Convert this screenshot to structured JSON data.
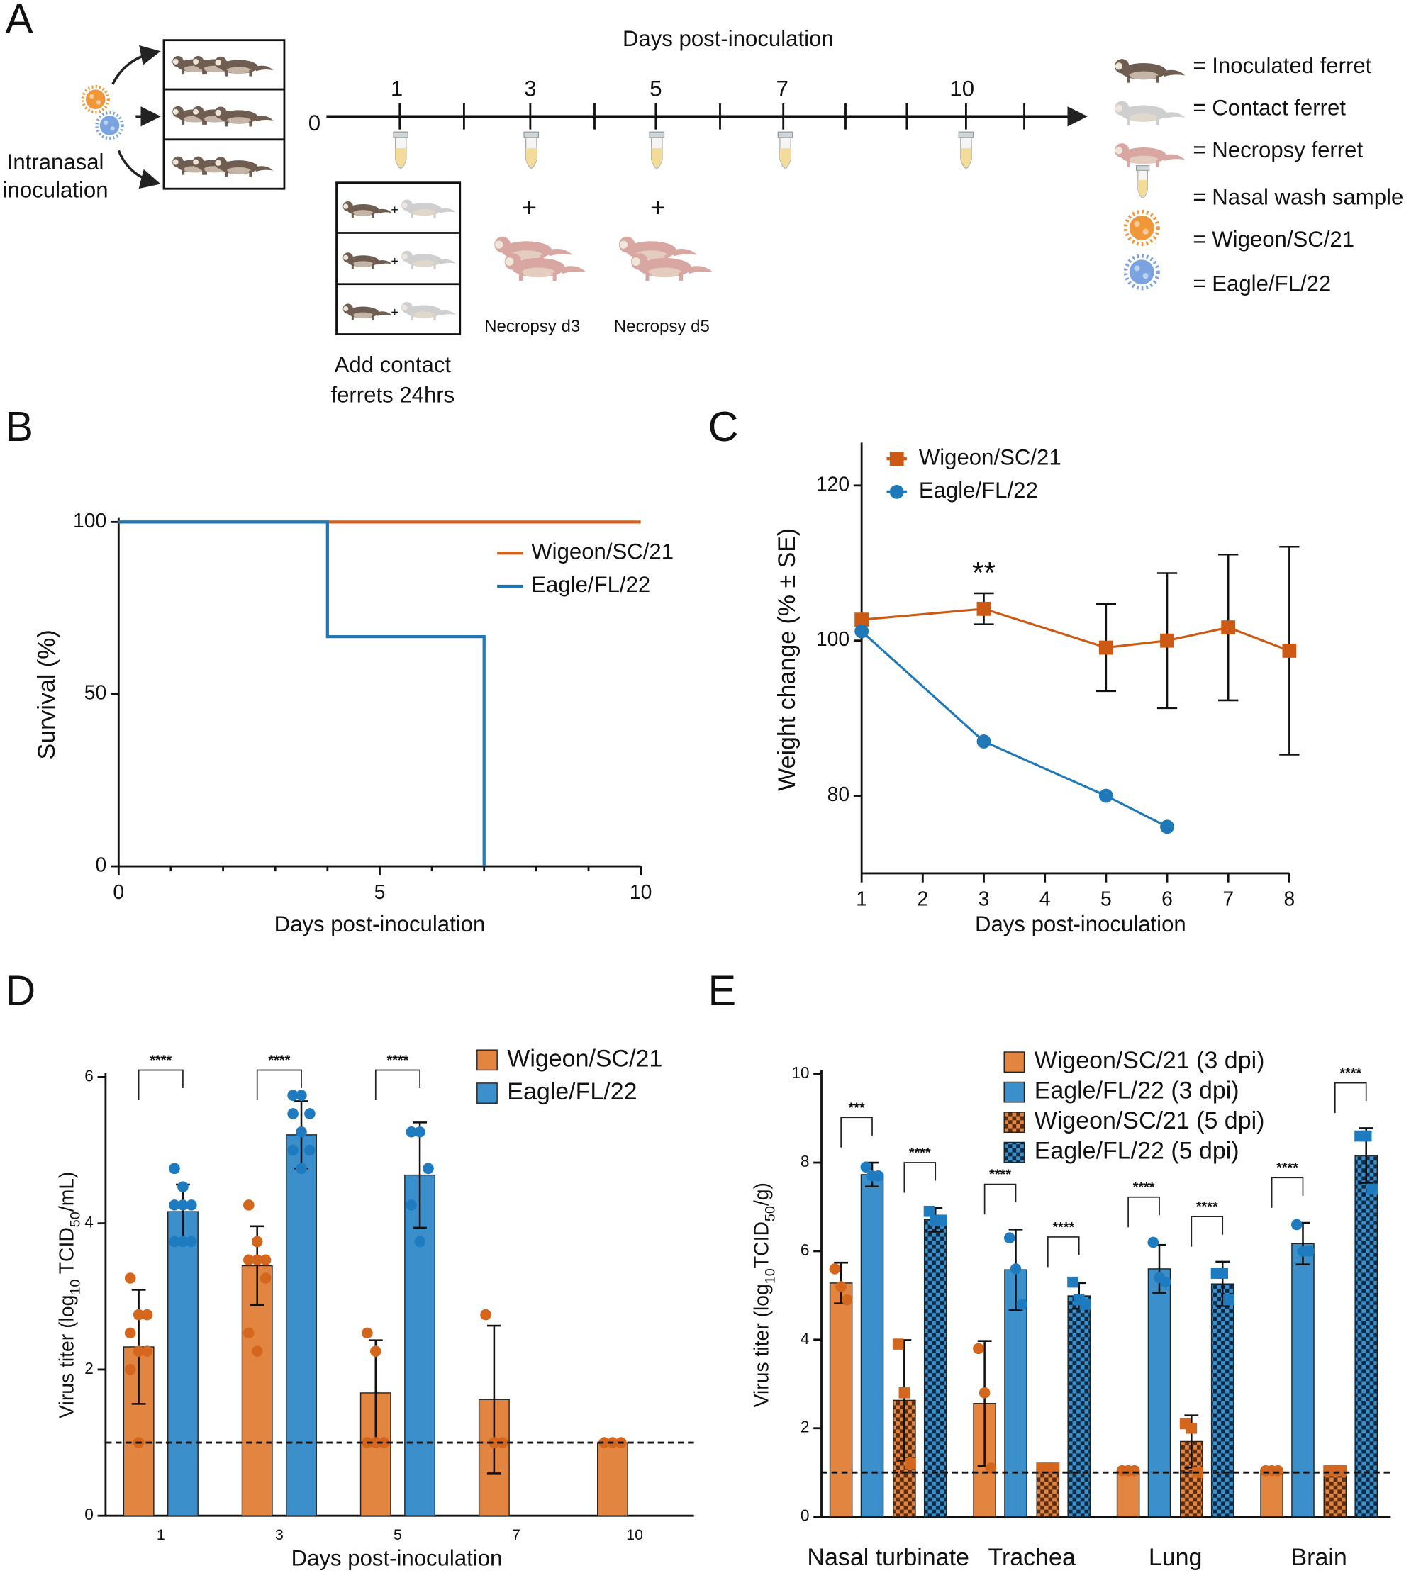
{
  "diagram": {
    "panel": "A",
    "inoculation_lines": [
      "Intranasal",
      "inoculation"
    ],
    "timeline_title": "Days post-inoculation",
    "zero": "0",
    "days": [
      "1",
      "3",
      "5",
      "7",
      "10"
    ],
    "plus": "+",
    "necropsy": [
      "Necropsy d3",
      "Necropsy d5"
    ],
    "contact_lines": [
      "Add contact",
      "ferrets 24hrs"
    ],
    "legend": [
      "= Inoculated ferret",
      "= Contact ferret",
      "= Necropsy ferret",
      "= Nasal wash sample",
      "= Wigeon/SC/21",
      "= Eagle/FL/22"
    ]
  },
  "chart_data": [
    {
      "type": "line",
      "panel": "B",
      "step": true,
      "ylabel": "Survival (%)",
      "xlabel": "Days post-inoculation",
      "xlim": [
        0,
        10
      ],
      "xticks": [
        0,
        5,
        10
      ],
      "minor_xticks": [
        1,
        2,
        3,
        4,
        6,
        7,
        8,
        9
      ],
      "ylim": [
        0,
        100
      ],
      "yticks": [
        0,
        50,
        100
      ],
      "series": [
        {
          "name": "Wigeon/SC/21",
          "color": "#d4601c",
          "x": [
            0,
            10
          ],
          "values": [
            100,
            100
          ]
        },
        {
          "name": "Eagle/FL/22",
          "color": "#1f78b8",
          "x": [
            0,
            4,
            7
          ],
          "values": [
            100,
            66.7,
            0
          ]
        }
      ]
    },
    {
      "type": "line",
      "panel": "C",
      "ylabel": "Weight change (% ± SE)",
      "xlabel": "Days post-inoculation",
      "xlim": [
        1,
        8
      ],
      "xticks": [
        1,
        2,
        3,
        4,
        5,
        6,
        7,
        8
      ],
      "ylim": [
        70,
        125
      ],
      "yticks": [
        80,
        100,
        120
      ],
      "series": [
        {
          "name": "Wigeon/SC/21",
          "color": "#cc5a14",
          "marker": "square",
          "x": [
            1,
            3,
            5,
            6,
            7,
            8
          ],
          "values": [
            102.7,
            104.1,
            99.1,
            100.0,
            101.7,
            98.7
          ],
          "errors": [
            null,
            2.0,
            5.6,
            8.7,
            9.4,
            13.4
          ]
        },
        {
          "name": "Eagle/FL/22",
          "color": "#1f78b8",
          "marker": "circle",
          "x": [
            1,
            3,
            5,
            6
          ],
          "values": [
            101.2,
            87.0,
            80.0,
            76.0
          ]
        }
      ],
      "annotations": [
        {
          "text": "**",
          "x": 3
        }
      ]
    },
    {
      "type": "bar",
      "panel": "D",
      "ylabel_parts": [
        "Virus titer (log",
        "10",
        " TCID",
        "50",
        "/mL)"
      ],
      "xlabel": "Days post-inoculation",
      "categories": [
        "1",
        "3",
        "5",
        "7",
        "10"
      ],
      "ylim": [
        0,
        6
      ],
      "yticks": [
        0,
        2,
        4,
        6
      ],
      "hline": 1.0,
      "series": [
        {
          "name": "Wigeon/SC/21",
          "color": "#e28540",
          "point_color": "#d4661d",
          "marker": "circle",
          "values": [
            2.31,
            3.42,
            1.68,
            1.59,
            1.0
          ],
          "errors": [
            0.78,
            0.54,
            0.72,
            1.01,
            null
          ],
          "points": [
            [
              3.25,
              2.75,
              2.75,
              2.5,
              2.25,
              2.25,
              2.0,
              1.0
            ],
            [
              4.25,
              3.75,
              3.5,
              3.5,
              3.5,
              3.25,
              2.5,
              2.25
            ],
            [
              2.5,
              2.25,
              1.0,
              1.0,
              1.0
            ],
            [
              2.75,
              1.0,
              1.0
            ],
            [
              1.0,
              1.0,
              1.0
            ]
          ]
        },
        {
          "name": "Eagle/FL/22",
          "color": "#3b8fcb",
          "point_color": "#1f7bc0",
          "marker": "circle",
          "values": [
            4.16,
            5.21,
            4.66,
            null,
            null
          ],
          "errors": [
            0.37,
            0.46,
            0.72,
            null,
            null
          ],
          "points": [
            [
              4.75,
              4.5,
              4.25,
              4.25,
              4.25,
              3.75,
              3.75,
              3.75
            ],
            [
              5.75,
              5.75,
              5.5,
              5.5,
              5.25,
              5.0,
              5.0,
              4.75
            ],
            [
              5.25,
              5.25,
              4.75,
              4.25,
              3.75
            ],
            [],
            []
          ]
        }
      ],
      "brackets": [
        {
          "text": "****",
          "category": 0,
          "series": [
            0,
            1
          ]
        },
        {
          "text": "****",
          "category": 1,
          "series": [
            0,
            1
          ]
        },
        {
          "text": "****",
          "category": 2,
          "series": [
            0,
            1
          ]
        }
      ]
    },
    {
      "type": "bar",
      "panel": "E",
      "ylabel_parts": [
        "Virus titer (log",
        "10",
        "TCID",
        "50",
        "/g)"
      ],
      "categories": [
        "Nasal turbinate",
        "Trachea",
        "Lung",
        "Brain"
      ],
      "ylim": [
        0,
        10
      ],
      "yticks": [
        0,
        2,
        4,
        6,
        8,
        10
      ],
      "hline": 1.0,
      "series": [
        {
          "name": "Wigeon/SC/21 (3 dpi)",
          "color": "#e28540",
          "point_color": "#d4661d",
          "marker": "circle",
          "values": [
            5.28,
            2.56,
            1.04,
            1.04
          ],
          "errors": [
            0.46,
            1.41,
            null,
            null
          ],
          "points": [
            [
              5.6,
              5.2,
              4.9
            ],
            [
              3.8,
              2.8,
              1.1
            ],
            [
              1.04,
              1.04,
              1.04
            ],
            [
              1.04,
              1.04,
              1.04
            ]
          ]
        },
        {
          "name": "Eagle/FL/22 (3 dpi)",
          "color": "#3b8fcb",
          "point_color": "#1f7bc0",
          "marker": "circle",
          "values": [
            7.73,
            5.58,
            5.6,
            6.17
          ],
          "errors": [
            0.27,
            0.91,
            0.54,
            0.47
          ],
          "points": [
            [
              7.9,
              7.7,
              7.7
            ],
            [
              6.3,
              5.6,
              4.8
            ],
            [
              6.2,
              5.4,
              5.3
            ],
            [
              6.6,
              6.0,
              6.0
            ]
          ]
        },
        {
          "name": "Wigeon/SC/21 (5 dpi)",
          "color": "#e28540",
          "hatch_color": "#5a2c10",
          "pattern": "checker",
          "point_color": "#d4661d",
          "marker": "square",
          "values": [
            2.63,
            1.09,
            1.7,
            1.04
          ],
          "errors": [
            1.36,
            null,
            0.59,
            null
          ],
          "points": [
            [
              3.9,
              2.8,
              1.2
            ],
            [
              1.1,
              1.1,
              1.1
            ],
            [
              2.1,
              2.0,
              1.0
            ],
            [
              1.04,
              1.04,
              1.04
            ]
          ]
        },
        {
          "name": "Eagle/FL/22 (5 dpi)",
          "color": "#3b8fcb",
          "hatch_color": "#0d2a45",
          "pattern": "checker",
          "point_color": "#1f7bc0",
          "marker": "square",
          "values": [
            6.71,
            4.99,
            5.26,
            8.16
          ],
          "errors": [
            0.27,
            0.29,
            0.5,
            0.62
          ],
          "points": [
            [
              6.9,
              6.7,
              6.7
            ],
            [
              5.3,
              4.9,
              4.8
            ],
            [
              5.5,
              5.5,
              4.9
            ],
            [
              8.6,
              8.6,
              7.4
            ]
          ]
        }
      ],
      "brackets": [
        {
          "text": "***",
          "category": 0,
          "series": [
            0,
            1
          ]
        },
        {
          "text": "****",
          "category": 0,
          "series": [
            2,
            3
          ]
        },
        {
          "text": "****",
          "category": 1,
          "series": [
            0,
            1
          ]
        },
        {
          "text": "****",
          "category": 1,
          "series": [
            2,
            3
          ]
        },
        {
          "text": "****",
          "category": 2,
          "series": [
            0,
            1
          ]
        },
        {
          "text": "****",
          "category": 2,
          "series": [
            2,
            3
          ]
        },
        {
          "text": "****",
          "category": 3,
          "series": [
            0,
            1
          ]
        },
        {
          "text": "****",
          "category": 3,
          "series": [
            2,
            3
          ]
        }
      ]
    }
  ]
}
